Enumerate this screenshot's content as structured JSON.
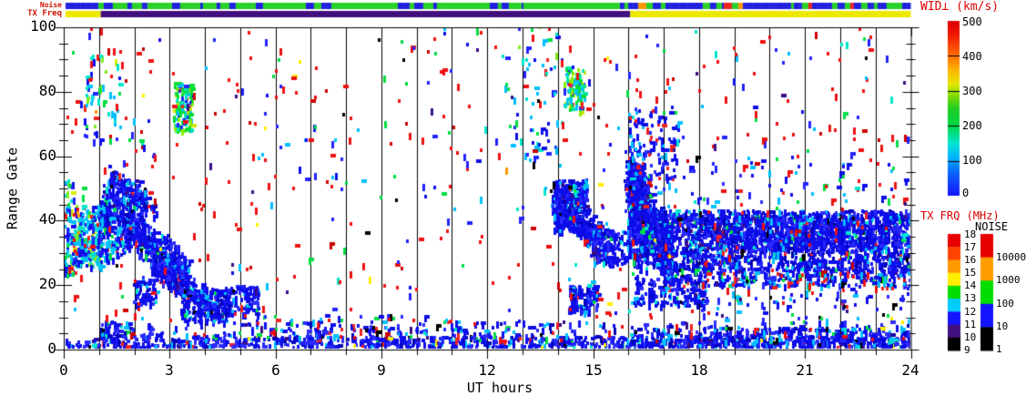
{
  "labels": {
    "noise_strip": "Noise",
    "tx_freq_strip": "TX Freq",
    "xlabel": "UT hours",
    "ylabel": "Range Gate"
  },
  "axes": {
    "x_tick_labels": [
      "0",
      "3",
      "6",
      "9",
      "12",
      "15",
      "18",
      "21",
      "24"
    ],
    "y_tick_labels": [
      "100",
      "80",
      "60",
      "40",
      "20",
      "0"
    ]
  },
  "colorbars": {
    "wid": {
      "title": "WID⊥ (km/s)",
      "title_color": "#dd0000",
      "ticks": [
        "500",
        "400",
        "300",
        "200",
        "100",
        "0"
      ],
      "gradient": [
        [
          0,
          "#1414ff"
        ],
        [
          0.13,
          "#0a64ff"
        ],
        [
          0.22,
          "#00b4ff"
        ],
        [
          0.3,
          "#00e6d2"
        ],
        [
          0.4,
          "#00d948"
        ],
        [
          0.5,
          "#22cc22"
        ],
        [
          0.58,
          "#8ae000"
        ],
        [
          0.64,
          "#e6e600"
        ],
        [
          0.72,
          "#ffb400"
        ],
        [
          0.82,
          "#ff6000"
        ],
        [
          0.92,
          "#f01800"
        ],
        [
          1,
          "#e00000"
        ]
      ],
      "dividers": [
        0.2,
        0.4,
        0.6,
        0.8
      ]
    },
    "txfrq": {
      "title": "TX FRQ (MHz)",
      "title_color": "#dd0000",
      "ticks": [
        "18",
        "17",
        "16",
        "15",
        "14",
        "13",
        "12",
        "11",
        "10",
        "9"
      ],
      "segments": [
        "#e60000",
        "#ff4400",
        "#ff9900",
        "#ffee00",
        "#00dd00",
        "#00ccff",
        "#1414ff",
        "#42107e",
        "#000000"
      ]
    },
    "noise": {
      "title": "NOISE",
      "title_color": "#000000",
      "ticks": [
        "10000",
        "1000",
        "100",
        "10",
        "1"
      ],
      "segments": [
        "#e60000",
        "#ff9d00",
        "#00dd00",
        "#1414ff",
        "#000000"
      ]
    }
  },
  "chart_data": {
    "type": "scatter-heatmap",
    "title": "",
    "xlabel": "UT hours",
    "ylabel": "Range Gate",
    "xlim": [
      0,
      24
    ],
    "ylim": [
      0,
      100
    ],
    "x_major_ticks": [
      0,
      3,
      6,
      9,
      12,
      15,
      18,
      21,
      24
    ],
    "x_minor_step": 1,
    "y_major_ticks": [
      0,
      20,
      40,
      60,
      80,
      100
    ],
    "y_minor_step": 5,
    "hour_gridlines": true,
    "legend": "WID⊥ (km/s) 0-500 rainbow scale; TX FRQ (MHz) 9-18 discrete; NOISE 1-10000 discrete",
    "seed": 1337,
    "cell": {
      "w": 3,
      "h": 4
    },
    "strips": {
      "noise": {
        "label": "Noise",
        "phases": [
          {
            "t": [
              0,
              0.85
            ],
            "colors": [
              "#2020e0"
            ],
            "weights": [
              1
            ]
          },
          {
            "t": [
              0.85,
              16.05
            ],
            "colors": [
              "#28d228",
              "#2020e0",
              "#ff9900",
              "#00ccff"
            ],
            "weights": [
              68,
              28,
              2,
              2
            ]
          },
          {
            "t": [
              16.05,
              24
            ],
            "colors": [
              "#2020e0",
              "#28d228",
              "#ff9900",
              "#ee2222"
            ],
            "weights": [
              72,
              24,
              2,
              2
            ]
          }
        ]
      },
      "txfreq": {
        "label": "TX Freq",
        "segments": [
          {
            "t": [
              0,
              1.05
            ],
            "color": "#ece800"
          },
          {
            "t": [
              1.05,
              16.05
            ],
            "color": "#42107e"
          },
          {
            "t": [
              16.05,
              24
            ],
            "color": "#ece800"
          }
        ]
      }
    },
    "palettes": {
      "blue": {
        "c": [
          "#0d0dea",
          "#2b2bff",
          "#0000bb",
          "#00bfff",
          "#00e6d2",
          "#3a0c86",
          "#ee2222",
          "#00dd44",
          "#000000"
        ],
        "w": [
          60,
          17,
          8,
          6,
          3,
          2,
          2,
          1,
          1
        ]
      },
      "cold": {
        "c": [
          "#00bfff",
          "#00e6cc",
          "#2222ff",
          "#0d0dea",
          "#00dd44",
          "#7fee22",
          "#d8ee00",
          "#ff9900",
          "#ee2222",
          "#3a0c86"
        ],
        "w": [
          26,
          20,
          16,
          12,
          10,
          6,
          3,
          2,
          4,
          1
        ]
      },
      "coldblue": {
        "c": [
          "#0d0dea",
          "#00bfff",
          "#2b2bff",
          "#00e6cc",
          "#00dd44",
          "#ee2222",
          "#3a0c86"
        ],
        "w": [
          40,
          24,
          12,
          12,
          6,
          4,
          2
        ]
      },
      "green": {
        "c": [
          "#00dd33",
          "#00e6aa",
          "#88ee00",
          "#00bfff",
          "#cfe600",
          "#2222ff",
          "#ee2222"
        ],
        "w": [
          30,
          20,
          14,
          14,
          8,
          10,
          4
        ]
      },
      "bottom": {
        "c": [
          "#0d0dea",
          "#2b2bff",
          "#0000bb",
          "#00bfff",
          "#00e6d2",
          "#3a0c86",
          "#ee2222",
          "#00dd44",
          "#000000",
          "#ffee00"
        ],
        "w": [
          46,
          22,
          10,
          8,
          3,
          3,
          3,
          2,
          2,
          1
        ]
      },
      "bluespeck": {
        "c": [
          "#0d0dea",
          "#2b2bff",
          "#00bfff",
          "#ee2222",
          "#00dd44",
          "#3a0c86",
          "#000000"
        ],
        "w": [
          48,
          14,
          16,
          10,
          6,
          3,
          3
        ]
      },
      "noise": {
        "c": [
          "#ee1111",
          "#cc0000",
          "#2222ff",
          "#0d0dea",
          "#00bfff",
          "#00dd44",
          "#00e6cc",
          "#ffee00",
          "#3a0c86",
          "#000000"
        ],
        "w": [
          42,
          8,
          14,
          8,
          10,
          7,
          4,
          2,
          3,
          2
        ]
      }
    },
    "regions": [
      {
        "kind": "box",
        "t": [
          0,
          0.25
        ],
        "g": [
          22,
          52
        ],
        "n": 70,
        "p": "cold"
      },
      {
        "kind": "box",
        "t": [
          0.2,
          1.05
        ],
        "g": [
          25,
          44
        ],
        "n": 240,
        "p": "cold"
      },
      {
        "kind": "box",
        "t": [
          0.95,
          1.75
        ],
        "g": [
          27,
          48
        ],
        "n": 170,
        "p": "coldblue"
      },
      {
        "kind": "box",
        "t": [
          1.1,
          2.3
        ],
        "g": [
          38,
          52
        ],
        "n": 170,
        "p": "blue"
      },
      {
        "kind": "band",
        "a": [
          1.7,
          38
        ],
        "b": [
          3.5,
          23
        ],
        "hw": 7,
        "n": 430,
        "p": "blue"
      },
      {
        "kind": "band",
        "a": [
          2.5,
          26
        ],
        "b": [
          4.35,
          12
        ],
        "hw": 5,
        "n": 300,
        "p": "blue"
      },
      {
        "kind": "box",
        "t": [
          1.95,
          2.6
        ],
        "g": [
          13,
          22
        ],
        "n": 60,
        "p": "blue"
      },
      {
        "kind": "box",
        "t": [
          3.3,
          4.6
        ],
        "g": [
          8,
          18
        ],
        "n": 160,
        "p": "blue"
      },
      {
        "kind": "box",
        "t": [
          4.5,
          5.5
        ],
        "g": [
          10,
          19
        ],
        "n": 110,
        "p": "blue"
      },
      {
        "kind": "band",
        "a": [
          1.3,
          54
        ],
        "b": [
          2.6,
          42
        ],
        "hw": 4,
        "n": 90,
        "p": "blue"
      },
      {
        "kind": "box",
        "t": [
          0.55,
          1.6
        ],
        "g": [
          64,
          92
        ],
        "n": 55,
        "p": "cold"
      },
      {
        "kind": "box",
        "t": [
          3.1,
          3.65
        ],
        "g": [
          67,
          82
        ],
        "n": 110,
        "p": "green"
      },
      {
        "kind": "box",
        "t": [
          0.05,
          1.0
        ],
        "g": [
          0,
          2.5
        ],
        "n": 25,
        "p": "bottom"
      },
      {
        "kind": "box",
        "t": [
          1.0,
          2.0
        ],
        "g": [
          0,
          8
        ],
        "n": 90,
        "p": "bottom"
      },
      {
        "kind": "box",
        "t": [
          2.0,
          24
        ],
        "g": [
          0,
          3.3
        ],
        "n": 800,
        "p": "bottom"
      },
      {
        "kind": "box",
        "t": [
          2.0,
          24
        ],
        "g": [
          3.3,
          8
        ],
        "n": 210,
        "p": "bottom"
      },
      {
        "kind": "box",
        "t": [
          16.0,
          24
        ],
        "g": [
          0,
          6
        ],
        "n": 320,
        "p": "bottom"
      },
      {
        "kind": "box",
        "t": [
          4.6,
          14
        ],
        "g": [
          2,
          10
        ],
        "n": 110,
        "p": "bluespeck"
      },
      {
        "kind": "band",
        "a": [
          13.85,
          47
        ],
        "b": [
          15.5,
          30
        ],
        "hw": 7,
        "n": 330,
        "p": "blue"
      },
      {
        "kind": "box",
        "t": [
          13.85,
          14.8
        ],
        "g": [
          36,
          52
        ],
        "n": 260,
        "p": "blue"
      },
      {
        "kind": "box",
        "t": [
          14.9,
          15.9
        ],
        "g": [
          26,
          36
        ],
        "n": 90,
        "p": "blue"
      },
      {
        "kind": "box",
        "t": [
          14.3,
          15.1
        ],
        "g": [
          11,
          19
        ],
        "n": 120,
        "p": "blue"
      },
      {
        "kind": "box",
        "t": [
          14.4,
          14.8
        ],
        "g": [
          45,
          52
        ],
        "n": 40,
        "p": "coldblue"
      },
      {
        "kind": "band",
        "a": [
          15.95,
          52
        ],
        "b": [
          17.2,
          27
        ],
        "hw": 11,
        "n": 620,
        "p": "blue"
      },
      {
        "kind": "box",
        "t": [
          15.95,
          16.45
        ],
        "g": [
          28,
          57
        ],
        "n": 300,
        "p": "blue"
      },
      {
        "kind": "box",
        "t": [
          16.0,
          17.4
        ],
        "g": [
          52,
          75
        ],
        "n": 110,
        "p": "bluespeck"
      },
      {
        "kind": "box",
        "t": [
          16.1,
          24
        ],
        "g": [
          23.5,
          41.5
        ],
        "n": 1500,
        "p": "blue"
      },
      {
        "kind": "box",
        "t": [
          17.6,
          24
        ],
        "g": [
          30,
          40
        ],
        "n": 550,
        "p": "blue"
      },
      {
        "kind": "box",
        "t": [
          16.2,
          24
        ],
        "g": [
          39.5,
          42.5
        ],
        "n": 250,
        "p": "blue"
      },
      {
        "kind": "box",
        "t": [
          17.0,
          24
        ],
        "g": [
          19,
          24
        ],
        "n": 160,
        "p": "bluespeck"
      },
      {
        "kind": "box",
        "t": [
          16.1,
          18.2
        ],
        "g": [
          13,
          22
        ],
        "n": 170,
        "p": "blue"
      },
      {
        "kind": "box",
        "t": [
          18.2,
          24
        ],
        "g": [
          19,
          23
        ],
        "n": 90,
        "p": "bluespeck"
      },
      {
        "kind": "box",
        "t": [
          12.4,
          14.1
        ],
        "g": [
          55,
          100
        ],
        "n": 60,
        "p": "cold"
      },
      {
        "kind": "box",
        "t": [
          14.15,
          14.75
        ],
        "g": [
          73,
          87
        ],
        "n": 90,
        "p": "green"
      },
      {
        "kind": "box",
        "t": [
          16,
          24
        ],
        "g": [
          45,
          60
        ],
        "n": 70,
        "p": "bluespeck"
      },
      {
        "kind": "box",
        "t": [
          18.4,
          24
        ],
        "g": [
          5,
          20
        ],
        "n": 80,
        "p": "bluespeck"
      },
      {
        "kind": "box",
        "t": [
          0,
          24
        ],
        "g": [
          2,
          99
        ],
        "n": 620,
        "p": "noise"
      }
    ]
  }
}
